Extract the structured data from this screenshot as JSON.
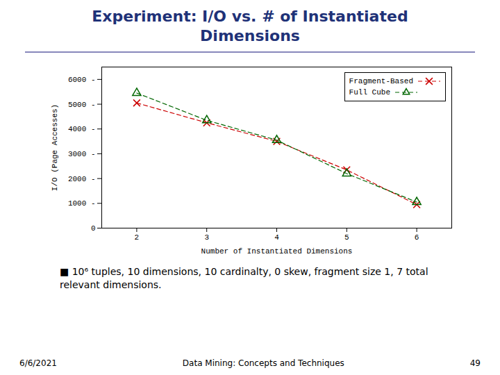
{
  "chart_data": {
    "type": "line",
    "title": "Experiment: I/O vs. # of Instantiated\nDimensions",
    "xlabel": "Number of Instantiated Dimensions",
    "ylabel": "I/O (Page Accesses)",
    "x": [
      2,
      3,
      4,
      5,
      6
    ],
    "series": [
      {
        "name": "Fragment-Based",
        "color": "#cc0000",
        "marker": "x",
        "line_style": "dashed",
        "values": [
          5050,
          4250,
          3500,
          2350,
          950
        ]
      },
      {
        "name": "Full Cube",
        "color": "#006600",
        "marker": "triangle",
        "line_style": "dashed",
        "values": [
          5450,
          4350,
          3550,
          2200,
          1050
        ]
      }
    ],
    "xlim": [
      1.5,
      6.5
    ],
    "ylim": [
      0,
      6500
    ],
    "xticks": [
      2,
      3,
      4,
      5,
      6
    ],
    "yticks": [
      0,
      {
        "value": 1000,
        "label": "1000 -"
      },
      {
        "value": 2000,
        "label": "2000 -"
      },
      {
        "value": 3000,
        "label": "3000 -"
      },
      {
        "value": 4000,
        "label": "4000 -"
      },
      {
        "value": 5000,
        "label": "5000 -"
      },
      {
        "value": 6000,
        "label": "6000 -"
      }
    ],
    "grid": false,
    "legend": "upper right",
    "annotations": [
      "■ 10⁶ tuples, 10 dimensions, 10 cardinalty, 0 skew, fragment size 1, 7 total relevant dimensions.",
      "6/6/2021",
      "Data Mining: Concepts and Techniques",
      "49"
    ]
  }
}
